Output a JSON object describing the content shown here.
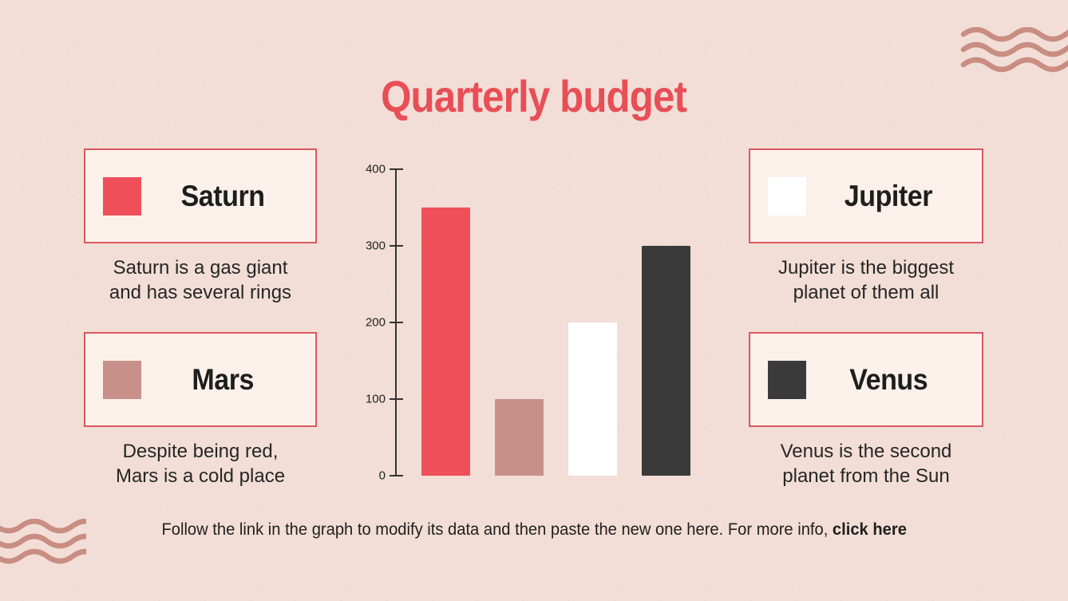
{
  "title": "Quarterly budget",
  "colors": {
    "background": "#f2ded6",
    "title": "#e84e56",
    "box_fill": "#fcf0eb",
    "box_border": "#d8595e",
    "text": "#262626",
    "axis": "#333333",
    "waves": "#c98d82"
  },
  "chart_data": {
    "type": "bar",
    "categories": [
      "Saturn",
      "Mars",
      "Jupiter",
      "Venus"
    ],
    "values": [
      350,
      100,
      200,
      300
    ],
    "bar_colors": [
      "#ee4f58",
      "#c9908a",
      "#ffffff",
      "#3a3a3a"
    ],
    "title": "Quarterly budget",
    "xlabel": "",
    "ylabel": "",
    "ylim": [
      0,
      400
    ],
    "yticks": [
      0,
      100,
      200,
      300,
      400
    ],
    "grid": false,
    "legend_position": "side-cards"
  },
  "legend": {
    "left": [
      {
        "label": "Saturn",
        "swatch_color": "#ee4f58",
        "description": "Saturn is a gas giant\nand has several rings"
      },
      {
        "label": "Mars",
        "swatch_color": "#c9908a",
        "description": "Despite being red,\nMars is a cold place"
      }
    ],
    "right": [
      {
        "label": "Jupiter",
        "swatch_color": "#ffffff",
        "description": "Jupiter is the biggest\nplanet of them all"
      },
      {
        "label": "Venus",
        "swatch_color": "#3a3a3a",
        "description": "Venus is the second\nplanet from the Sun"
      }
    ]
  },
  "footer": {
    "text": "Follow the link in the graph to modify its data and then paste the new one here. For more info, ",
    "link_label": "click here"
  }
}
